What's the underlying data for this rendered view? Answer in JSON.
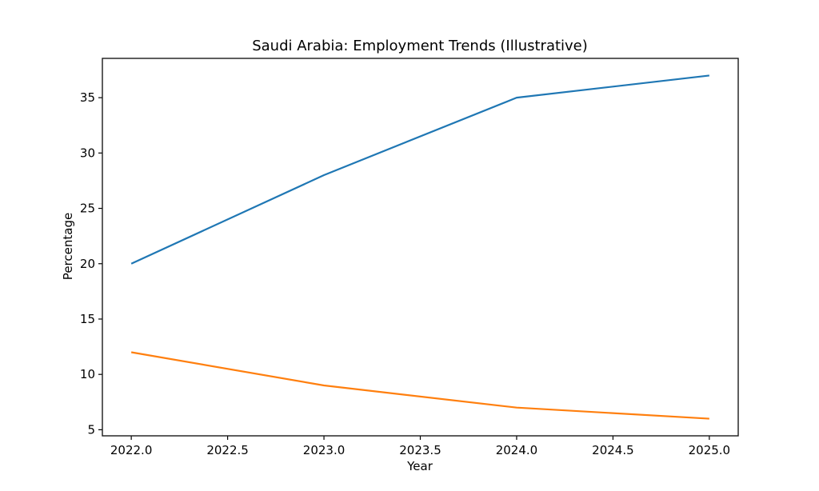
{
  "figure": {
    "background": "#ffffff"
  },
  "chart_data": {
    "type": "line",
    "title": "Saudi Arabia: Employment Trends (Illustrative)",
    "xlabel": "Year",
    "ylabel": "Percentage",
    "x": [
      2022,
      2023,
      2024,
      2025
    ],
    "series": [
      {
        "name": "line-1",
        "color": "#1f77b4",
        "values": [
          20,
          28,
          35,
          37
        ]
      },
      {
        "name": "line-2",
        "color": "#ff7f0e",
        "values": [
          12,
          9,
          7,
          6
        ]
      }
    ],
    "xlim": [
      2021.85,
      2025.15
    ],
    "ylim": [
      4.45,
      38.55
    ],
    "xticks": [
      2022.0,
      2022.5,
      2023.0,
      2023.5,
      2024.0,
      2024.5,
      2025.0
    ],
    "xtick_labels": [
      "2022.0",
      "2022.5",
      "2023.0",
      "2023.5",
      "2024.0",
      "2024.5",
      "2025.0"
    ],
    "yticks": [
      5,
      10,
      15,
      20,
      25,
      30,
      35
    ],
    "ytick_labels": [
      "5",
      "10",
      "15",
      "20",
      "25",
      "30",
      "35"
    ],
    "grid": false,
    "legend": "none",
    "axis_color": "#000000",
    "text_color": "#000000"
  }
}
